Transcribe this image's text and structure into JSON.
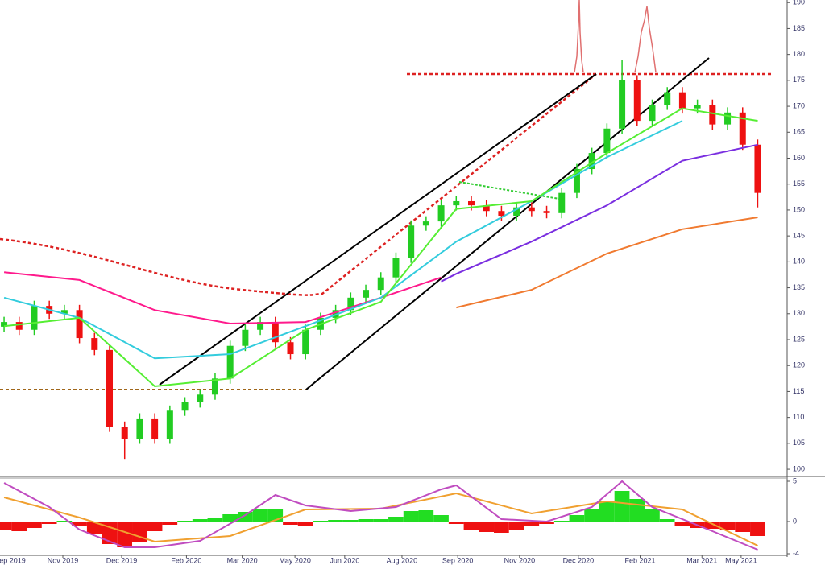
{
  "chart_data": [
    {
      "type": "candlestick",
      "open": [
        127.5,
        128.4,
        126.9,
        131.5,
        130.0,
        130.7,
        125.3,
        123.0,
        108.2,
        105.9,
        109.8,
        105.9,
        111.3,
        112.9,
        114.4,
        117.5,
        123.8,
        126.9,
        128.4,
        124.5,
        122.2,
        126.9,
        129.2,
        130.7,
        133.1,
        134.6,
        137.0,
        140.8,
        147.0,
        147.8,
        150.9,
        151.7,
        150.9,
        149.8,
        148.9,
        150.5,
        149.8,
        149.4,
        153.3,
        157.9,
        161.0,
        165.7,
        175.0,
        167.2,
        170.3,
        172.7,
        169.6,
        170.3,
        166.5,
        168.8,
        162.6
      ],
      "high": [
        129.4,
        129.4,
        132.5,
        132.5,
        131.7,
        131.7,
        126.3,
        124.0,
        109.2,
        110.8,
        110.8,
        112.3,
        113.9,
        115.4,
        118.5,
        124.8,
        127.9,
        129.4,
        129.4,
        125.5,
        127.9,
        130.2,
        131.7,
        134.1,
        135.6,
        138.0,
        141.8,
        148.0,
        148.8,
        151.9,
        152.7,
        152.7,
        151.9,
        150.8,
        151.5,
        151.5,
        150.8,
        154.3,
        158.9,
        162.0,
        166.7,
        178.9,
        176.0,
        171.3,
        173.7,
        173.7,
        171.3,
        171.3,
        169.8,
        169.8,
        163.6
      ],
      "low": [
        126.5,
        125.9,
        125.9,
        129.0,
        129.0,
        124.3,
        122.0,
        107.2,
        102.0,
        104.9,
        104.9,
        104.9,
        110.3,
        111.9,
        113.4,
        116.5,
        122.8,
        125.9,
        123.5,
        121.2,
        121.2,
        125.9,
        128.2,
        129.7,
        132.1,
        133.6,
        136.0,
        139.8,
        146.0,
        146.8,
        149.9,
        149.9,
        148.8,
        147.9,
        147.9,
        148.8,
        148.4,
        148.4,
        152.3,
        156.9,
        160.0,
        164.7,
        166.2,
        166.2,
        169.3,
        168.6,
        168.6,
        165.5,
        165.5,
        161.6,
        150.5
      ],
      "close": [
        128.4,
        126.9,
        131.5,
        130.0,
        130.7,
        125.3,
        123.0,
        108.2,
        105.9,
        109.8,
        105.9,
        111.3,
        112.9,
        114.4,
        117.5,
        123.8,
        126.9,
        128.4,
        124.5,
        122.2,
        126.9,
        129.2,
        130.7,
        133.1,
        134.6,
        137.0,
        140.8,
        147.0,
        147.8,
        150.9,
        151.7,
        150.9,
        149.8,
        148.9,
        150.5,
        149.8,
        149.4,
        153.3,
        157.9,
        161.0,
        165.7,
        175.0,
        167.2,
        170.3,
        172.7,
        169.6,
        170.3,
        166.5,
        168.8,
        162.6,
        153.3
      ],
      "up_color": "#22cc22",
      "down_color": "#ee1111",
      "series": [
        {
          "color": "#ff1a8c",
          "x": [
            0,
            5,
            10,
            15,
            20,
            25,
            29
          ],
          "values": [
            138.0,
            136.5,
            130.7,
            128.1,
            128.4,
            133.1,
            137.0
          ]
        },
        {
          "color": "#33ccdd",
          "x": [
            0,
            5,
            10,
            15,
            20,
            25,
            30,
            35,
            40,
            45
          ],
          "values": [
            133.1,
            129.2,
            121.4,
            122.2,
            127.6,
            133.1,
            143.9,
            151.7,
            160.2,
            167.2
          ]
        },
        {
          "color": "#7a2ee0",
          "x": [
            29,
            30,
            35,
            40,
            45,
            50
          ],
          "values": [
            136.2,
            137.7,
            143.9,
            150.9,
            159.5,
            162.6
          ]
        },
        {
          "color": "#f07a30",
          "x": [
            30,
            35,
            40,
            45,
            50
          ],
          "values": [
            131.2,
            134.6,
            141.6,
            146.3,
            148.6
          ]
        },
        {
          "color": "#55ee33",
          "x": [
            0,
            5,
            10,
            15,
            20,
            25,
            30,
            35,
            40,
            45,
            50
          ],
          "values": [
            127.6,
            129.2,
            116.0,
            117.5,
            126.9,
            132.3,
            150.2,
            151.7,
            161.0,
            169.6,
            167.2
          ]
        }
      ],
      "ylim": [
        99.7,
        190.5
      ],
      "yticks": [
        100,
        105,
        110,
        115,
        120,
        125,
        130,
        135,
        140,
        145,
        150,
        155,
        160,
        165,
        170,
        175,
        180,
        185,
        190
      ],
      "xlim": [
        -0.27,
        51.9
      ],
      "xticks": [
        {
          "value": 0.4,
          "label": "Sep 2019"
        },
        {
          "value": 3.9,
          "label": "Nov 2019"
        },
        {
          "value": 7.8,
          "label": "Dec 2019"
        },
        {
          "value": 12.1,
          "label": "Feb 2020"
        },
        {
          "value": 15.8,
          "label": "Mar 2020"
        },
        {
          "value": 19.3,
          "label": "May 2020"
        },
        {
          "value": 22.6,
          "label": "Jun 2020"
        },
        {
          "value": 26.4,
          "label": "Aug 2020"
        },
        {
          "value": 30.1,
          "label": "Sep 2020"
        },
        {
          "value": 34.2,
          "label": "Nov 2020"
        },
        {
          "value": 38.1,
          "label": "Dec 2020"
        },
        {
          "value": 42.2,
          "label": "Feb 2021"
        },
        {
          "value": 46.3,
          "label": "Mar 2021"
        },
        {
          "value": 48.9,
          "label": "May 2021"
        }
      ]
    },
    {
      "type": "macd",
      "histogram": [
        -1.0,
        -1.2,
        -0.8,
        -0.3,
        0.1,
        -0.5,
        -1.5,
        -2.8,
        -3.2,
        -2.5,
        -1.2,
        -0.4,
        0.1,
        0.3,
        0.5,
        0.9,
        1.2,
        1.5,
        1.6,
        -0.4,
        -0.6,
        0.1,
        0.2,
        0.2,
        0.3,
        0.3,
        0.6,
        1.3,
        1.4,
        0.8,
        -0.3,
        -1.0,
        -1.3,
        -1.4,
        -1.0,
        -0.5,
        -0.3,
        0.1,
        0.8,
        1.5,
        2.6,
        3.8,
        2.8,
        1.6,
        0.3,
        -0.6,
        -0.8,
        -0.9,
        -1.0,
        -1.3,
        -1.8
      ],
      "up_color": "#22dd22",
      "down_color": "#ee1111",
      "series": [
        {
          "color": "#f0a030",
          "x": [
            0,
            5,
            10,
            15,
            20,
            25,
            30,
            35,
            40,
            45,
            50
          ],
          "values": [
            3.0,
            0.5,
            -2.5,
            -1.8,
            1.5,
            1.6,
            3.5,
            1.0,
            2.5,
            1.5,
            -3.0
          ]
        },
        {
          "color": "#c04cc0",
          "x": [
            0,
            3,
            5,
            8,
            10,
            13,
            16,
            18,
            20,
            23,
            26,
            29,
            30,
            33,
            36,
            39,
            41,
            43,
            47,
            50
          ],
          "values": [
            4.8,
            1.8,
            -1.0,
            -3.2,
            -3.2,
            -2.4,
            0.8,
            3.3,
            2.0,
            1.3,
            1.8,
            4.0,
            4.5,
            0.3,
            0,
            1.8,
            5.0,
            1.8,
            -1.2,
            -3.5
          ]
        }
      ],
      "ylim": [
        -4.4,
        5.3
      ],
      "yticks": [
        5,
        0,
        -4
      ]
    }
  ]
}
